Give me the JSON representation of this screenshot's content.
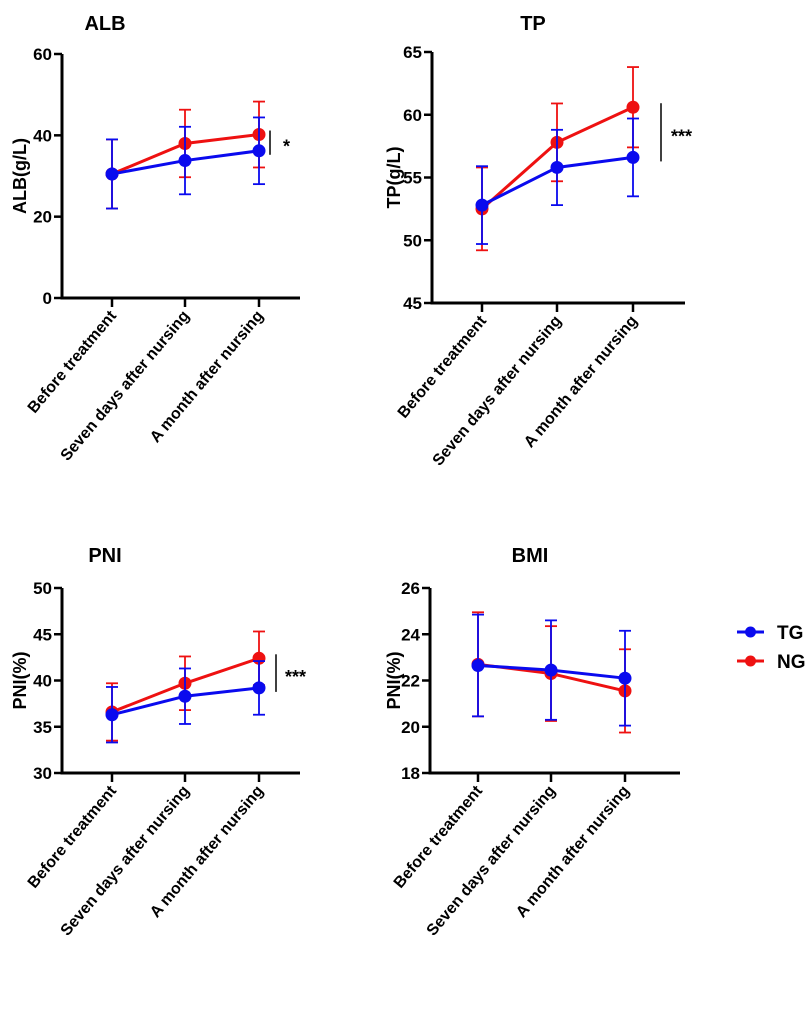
{
  "chart_data": [
    {
      "type": "line",
      "title": "ALB",
      "ylabel": "ALB(g/L)",
      "xlabel": "",
      "categories": [
        "Before treatment",
        "Seven days after nursing",
        "A month after nursing"
      ],
      "ylim": [
        0,
        60
      ],
      "yticks": [
        0,
        20,
        40,
        60
      ],
      "series": [
        {
          "name": "TG",
          "values": [
            30.5,
            33.8,
            36.2
          ],
          "error": [
            8.5,
            8.3,
            8.2
          ]
        },
        {
          "name": "NG",
          "values": [
            30.5,
            38.0,
            40.2
          ],
          "error": [
            8.5,
            8.3,
            8.1
          ]
        }
      ],
      "significance": "*"
    },
    {
      "type": "line",
      "title": "TP",
      "ylabel": "TP(g/L)",
      "xlabel": "",
      "categories": [
        "Before treatment",
        "Seven days after nursing",
        "A month after nursing"
      ],
      "ylim": [
        45,
        65
      ],
      "yticks": [
        45,
        50,
        55,
        60,
        65
      ],
      "series": [
        {
          "name": "TG",
          "values": [
            52.8,
            55.8,
            56.6
          ],
          "error": [
            3.1,
            3.0,
            3.1
          ]
        },
        {
          "name": "NG",
          "values": [
            52.5,
            57.8,
            60.6
          ],
          "error": [
            3.3,
            3.1,
            3.2
          ]
        }
      ],
      "significance": "***"
    },
    {
      "type": "line",
      "title": "PNI",
      "ylabel": "PNI(%)",
      "xlabel": "",
      "categories": [
        "Before treatment",
        "Seven days after nursing",
        "A month after nursing"
      ],
      "ylim": [
        30,
        50
      ],
      "yticks": [
        30,
        35,
        40,
        45,
        50
      ],
      "series": [
        {
          "name": "TG",
          "values": [
            36.3,
            38.3,
            39.2
          ],
          "error": [
            3.0,
            3.0,
            2.9
          ]
        },
        {
          "name": "NG",
          "values": [
            36.6,
            39.7,
            42.4
          ],
          "error": [
            3.1,
            2.9,
            2.9
          ]
        }
      ],
      "significance": "***"
    },
    {
      "type": "line",
      "title": "BMI",
      "ylabel": "PNI(%)",
      "xlabel": "",
      "categories": [
        "Before treatment",
        "Seven days after nursing",
        "A month after nursing"
      ],
      "ylim": [
        18,
        26
      ],
      "yticks": [
        18,
        20,
        22,
        24,
        26
      ],
      "series": [
        {
          "name": "TG",
          "values": [
            22.65,
            22.45,
            22.1
          ],
          "error": [
            2.2,
            2.15,
            2.05
          ]
        },
        {
          "name": "NG",
          "values": [
            22.7,
            22.3,
            21.55
          ],
          "error": [
            2.25,
            2.05,
            1.8
          ]
        }
      ],
      "significance": ""
    }
  ],
  "legend": {
    "position": "right",
    "items": [
      {
        "label": "TG",
        "color": "#0a0aee"
      },
      {
        "label": "NG",
        "color": "#ee1111"
      }
    ]
  }
}
